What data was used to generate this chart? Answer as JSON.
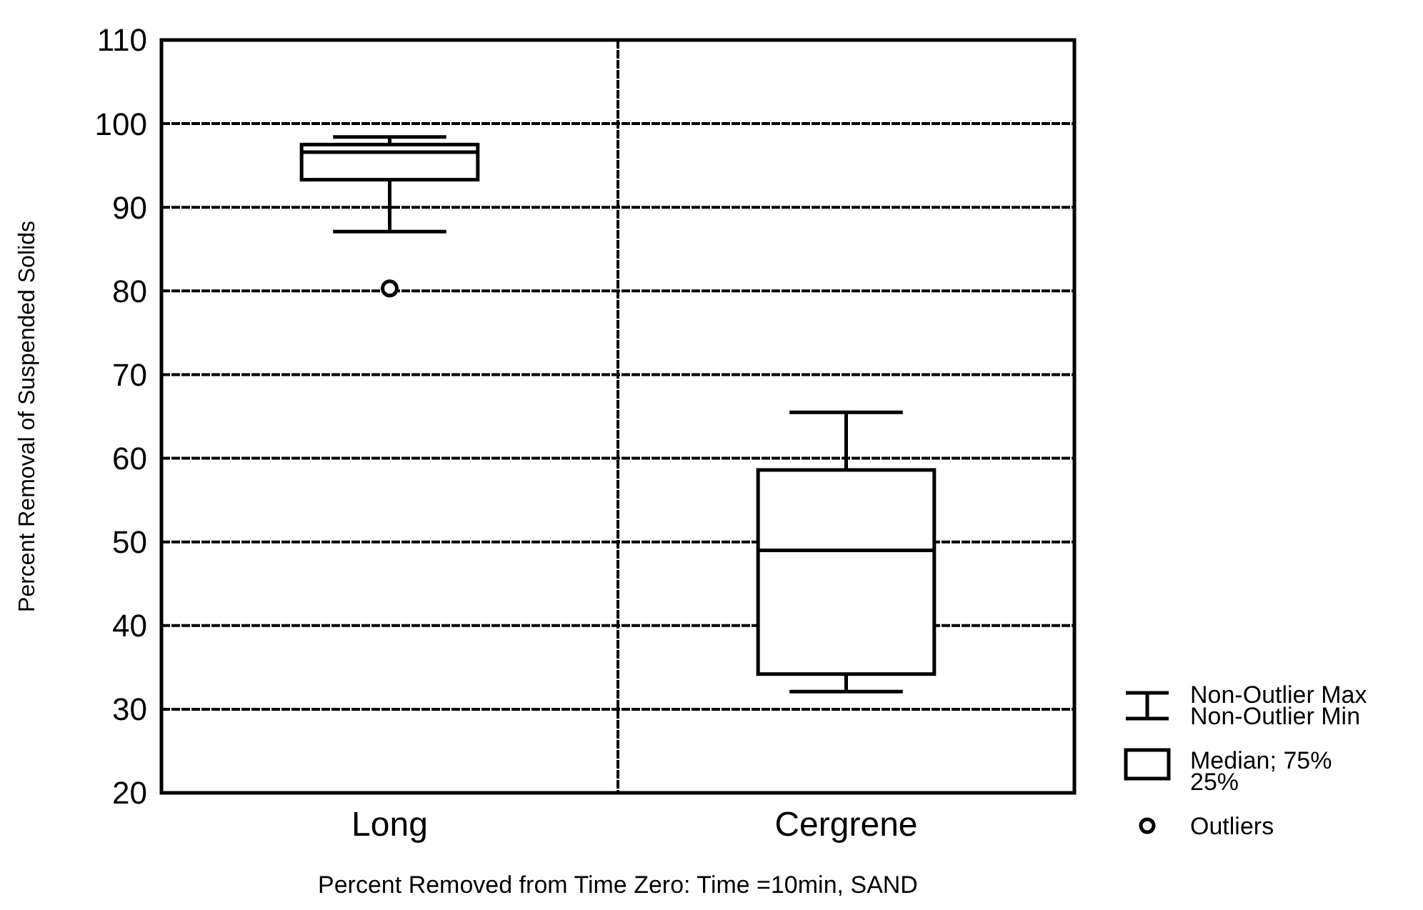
{
  "chart_data": {
    "type": "box",
    "xlabel": "Percent Removed from Time Zero: Time =10min, SAND",
    "ylabel": "Percent Removal of Suspended Solids",
    "categories": [
      "Long",
      "Cergrene"
    ],
    "boxes": [
      {
        "low": 87.1,
        "q1": 93.3,
        "median": 96.6,
        "q3": 97.5,
        "high": 98.4,
        "outliers": [
          80.3
        ]
      },
      {
        "low": 32.1,
        "q1": 34.2,
        "median": 49.0,
        "q3": 58.6,
        "high": 65.5
      }
    ],
    "ylim": [
      20,
      110
    ],
    "yticks": [
      20,
      30,
      40,
      50,
      60,
      70,
      80,
      90,
      100,
      110
    ],
    "grid": true,
    "annotations": [
      "Non-Outlier Max",
      "Non-Outlier Min",
      "Median; 75%",
      "25%",
      "Outliers"
    ]
  }
}
